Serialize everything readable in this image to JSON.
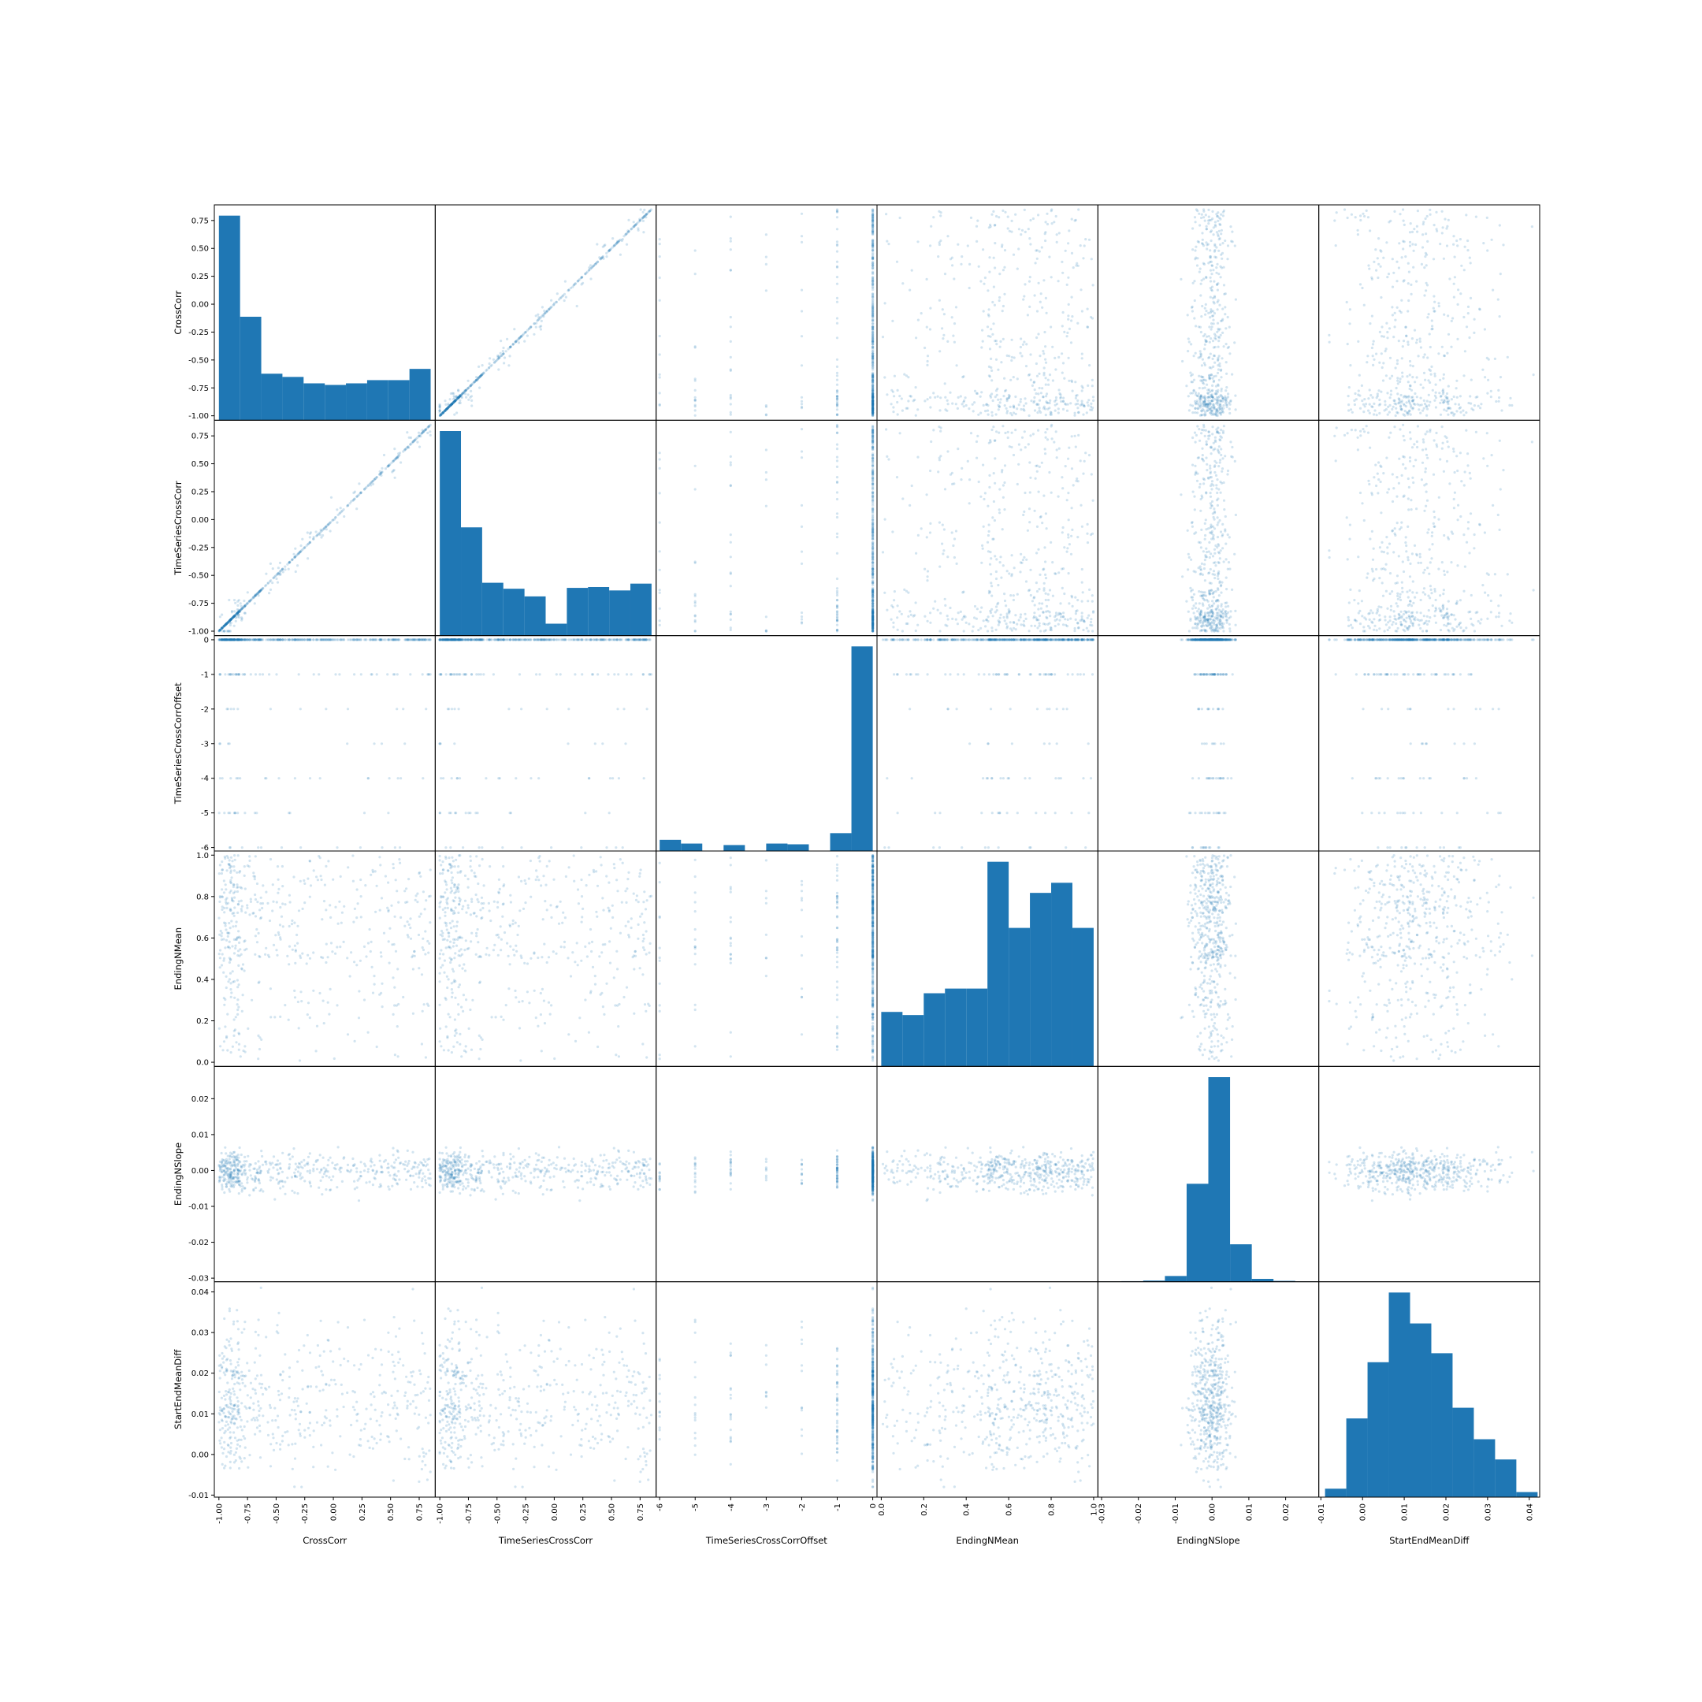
{
  "chart_data": {
    "type": "scatter-matrix",
    "variables": [
      {
        "name": "CrossCorr",
        "range": [
          -1.04,
          0.89
        ],
        "ticks": [
          -1.0,
          -0.75,
          -0.5,
          -0.25,
          0.0,
          0.25,
          0.5,
          0.75
        ],
        "tick_labels": [
          "-1.00",
          "-0.75",
          "-0.50",
          "-0.25",
          "0.00",
          "0.25",
          "0.50",
          "0.75"
        ]
      },
      {
        "name": "TimeSeriesCrossCorr",
        "range": [
          -1.04,
          0.89
        ],
        "ticks": [
          -1.0,
          -0.75,
          -0.5,
          -0.25,
          0.0,
          0.25,
          0.5,
          0.75
        ],
        "tick_labels": [
          "-1.00",
          "-0.75",
          "-0.50",
          "-0.25",
          "0.00",
          "0.25",
          "0.50",
          "0.75"
        ]
      },
      {
        "name": "TimeSeriesCrossCorrOffset",
        "range": [
          -6.1,
          0.12
        ],
        "ticks": [
          -6,
          -5,
          -4,
          -3,
          -2,
          -1,
          0
        ],
        "tick_labels": [
          "-6",
          "-5",
          "-4",
          "-3",
          "-2",
          "-1",
          "0"
        ]
      },
      {
        "name": "EndingNMean",
        "range": [
          -0.02,
          1.02
        ],
        "ticks": [
          0.0,
          0.2,
          0.4,
          0.6,
          0.8,
          1.0
        ],
        "tick_labels": [
          "0.0",
          "0.2",
          "0.4",
          "0.6",
          "0.8",
          "1.0"
        ]
      },
      {
        "name": "EndingNSlope",
        "range": [
          -0.031,
          0.029
        ],
        "ticks": [
          -0.03,
          -0.02,
          -0.01,
          0.0,
          0.01,
          0.02
        ],
        "tick_labels": [
          "-0.03",
          "-0.02",
          "-0.01",
          "0.00",
          "0.01",
          "0.02"
        ]
      },
      {
        "name": "StartEndMeanDiff",
        "range": [
          -0.0105,
          0.0425
        ],
        "ticks": [
          -0.01,
          0.0,
          0.01,
          0.02,
          0.03,
          0.04
        ],
        "tick_labels": [
          "-0.01",
          "0.00",
          "0.01",
          "0.02",
          "0.03",
          "0.04"
        ]
      }
    ],
    "histograms": [
      {
        "variable": "CrossCorr",
        "bin_range": [
          -1.0,
          0.85
        ],
        "counts": [
          255,
          129,
          58,
          54,
          46,
          44,
          46,
          50,
          50,
          64
        ]
      },
      {
        "variable": "TimeSeriesCrossCorr",
        "bin_range": [
          -1.0,
          0.85
        ],
        "counts": [
          240,
          127,
          62,
          55,
          46,
          14,
          56,
          57,
          53,
          61
        ]
      },
      {
        "variable": "TimeSeriesCrossCorrOffset",
        "bin_range": [
          -6,
          0
        ],
        "counts": [
          15,
          10,
          0,
          8,
          0,
          10,
          9,
          0,
          24,
          275
        ]
      },
      {
        "variable": "EndingNMean",
        "bin_range": [
          0.0,
          1.0
        ],
        "counts": [
          70,
          66,
          94,
          100,
          100,
          263,
          178,
          223,
          236,
          178
        ]
      },
      {
        "variable": "EndingNSlope",
        "bin_range": [
          -0.0305,
          0.0285
        ],
        "counts": [
          1,
          2,
          4,
          20,
          340,
          710,
          130,
          10,
          3,
          1
        ]
      },
      {
        "variable": "StartEndMeanDiff",
        "bin_range": [
          -0.009,
          0.042
        ],
        "counts": [
          15,
          140,
          240,
          364,
          309,
          256,
          159,
          103,
          67,
          9
        ]
      }
    ],
    "scatter_style": {
      "color": "#1f77b4",
      "alpha": 0.2
    },
    "grid": false
  }
}
